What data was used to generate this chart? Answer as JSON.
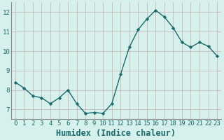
{
  "x": [
    0,
    1,
    2,
    3,
    4,
    5,
    6,
    7,
    8,
    9,
    10,
    11,
    12,
    13,
    14,
    15,
    16,
    17,
    18,
    19,
    20,
    21,
    22,
    23
  ],
  "y": [
    8.4,
    8.1,
    7.7,
    7.6,
    7.3,
    7.6,
    8.0,
    7.3,
    6.8,
    6.85,
    6.8,
    7.3,
    8.8,
    10.2,
    11.1,
    11.65,
    12.1,
    11.75,
    11.2,
    10.45,
    10.2,
    10.45,
    10.25,
    9.75
  ],
  "xlabel": "Humidex (Indice chaleur)",
  "bg_color": "#d6f0ec",
  "grid_color": "#c8b8b8",
  "line_color": "#1a6b6b",
  "marker_color": "#1a6b6b",
  "ylim": [
    6.5,
    12.5
  ],
  "xlim": [
    -0.5,
    23.5
  ],
  "yticks": [
    7,
    8,
    9,
    10,
    11,
    12
  ],
  "xticks": [
    0,
    1,
    2,
    3,
    4,
    5,
    6,
    7,
    8,
    9,
    10,
    11,
    12,
    13,
    14,
    15,
    16,
    17,
    18,
    19,
    20,
    21,
    22,
    23
  ],
  "tick_fontsize": 6.5,
  "xlabel_fontsize": 8.5,
  "font_color": "#1a6b6b",
  "spine_color": "#888888"
}
